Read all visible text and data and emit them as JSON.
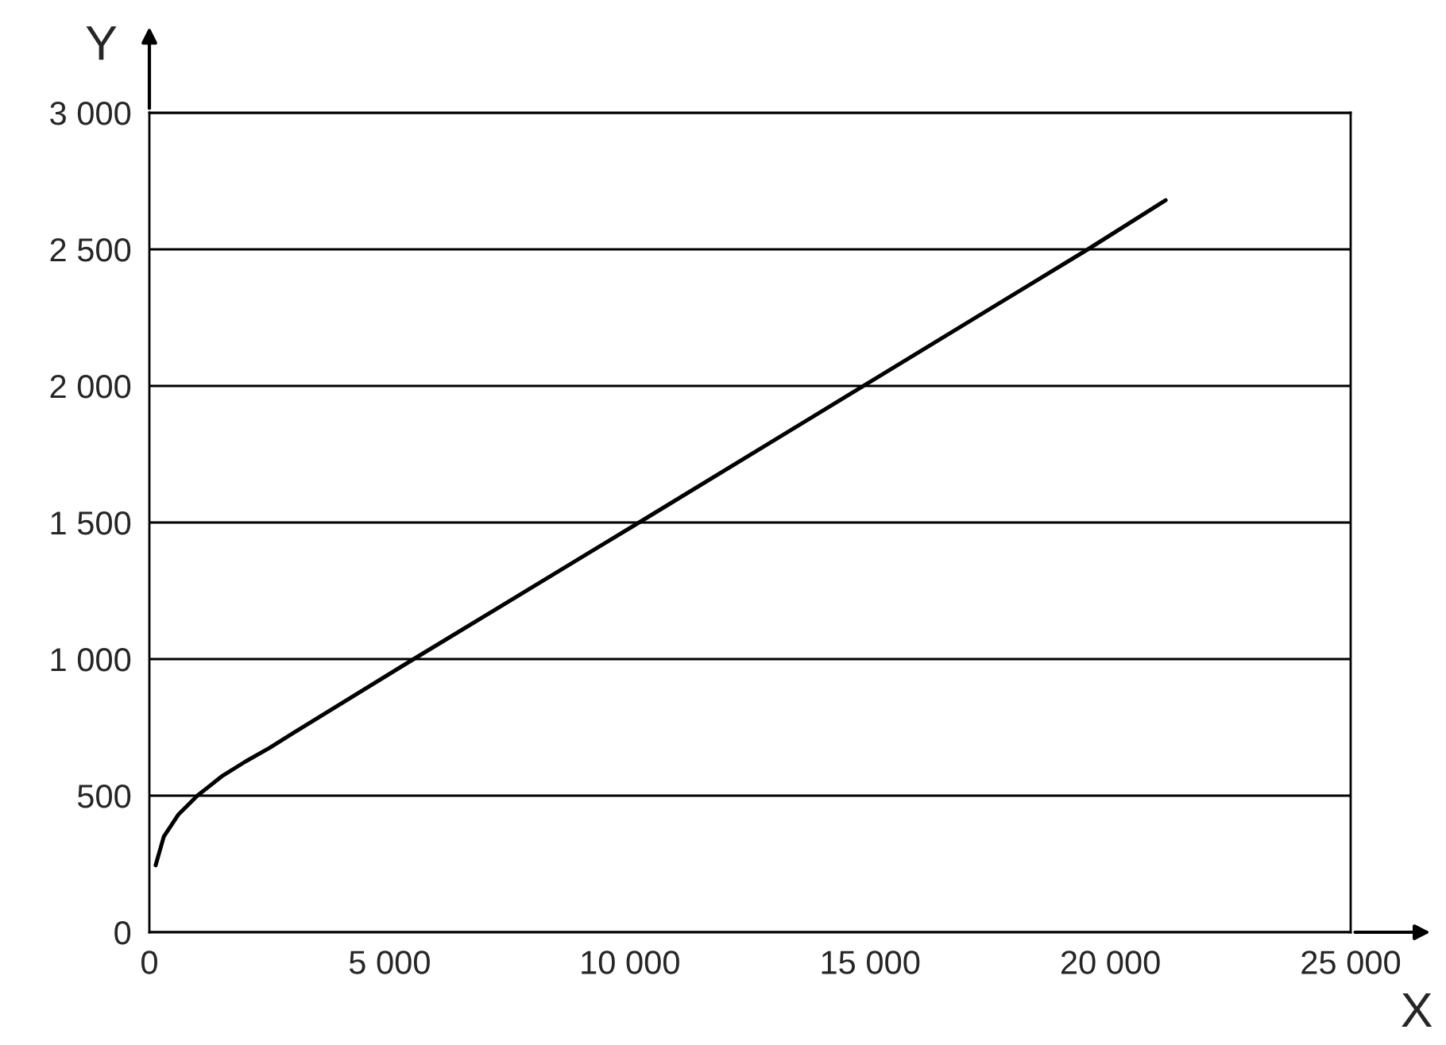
{
  "chart_data": {
    "type": "line",
    "xlabel": "X",
    "ylabel": "Y",
    "x": [
      130,
      300,
      600,
      1000,
      1500,
      2000,
      2500,
      3000,
      5500,
      10190,
      19530,
      21150
    ],
    "series": [
      {
        "color": "#000000",
        "values": [
          245,
          350,
          430,
          500,
          570,
          625,
          675,
          730,
          1000,
          1500,
          2500,
          2680
        ]
      }
    ],
    "xlim": [
      0,
      25000
    ],
    "ylim": [
      0,
      3000
    ],
    "xticks": [
      0,
      {
        "value": 5000,
        "label": "5 000"
      },
      {
        "value": 10000,
        "label": "10 000"
      },
      {
        "value": 15000,
        "label": "15 000"
      },
      {
        "value": 20000,
        "label": "20 000"
      },
      {
        "value": 25000,
        "label": "25 000"
      }
    ],
    "yticks": [
      0,
      500,
      {
        "value": 1000,
        "label": "1 000"
      },
      {
        "value": 1500,
        "label": "1 500"
      },
      {
        "value": 2000,
        "label": "2 000"
      },
      {
        "value": 2500,
        "label": "2 500"
      },
      {
        "value": 3000,
        "label": "3 000"
      }
    ],
    "grid": "y",
    "legend": false,
    "marker": "none",
    "line_style": "solid"
  }
}
